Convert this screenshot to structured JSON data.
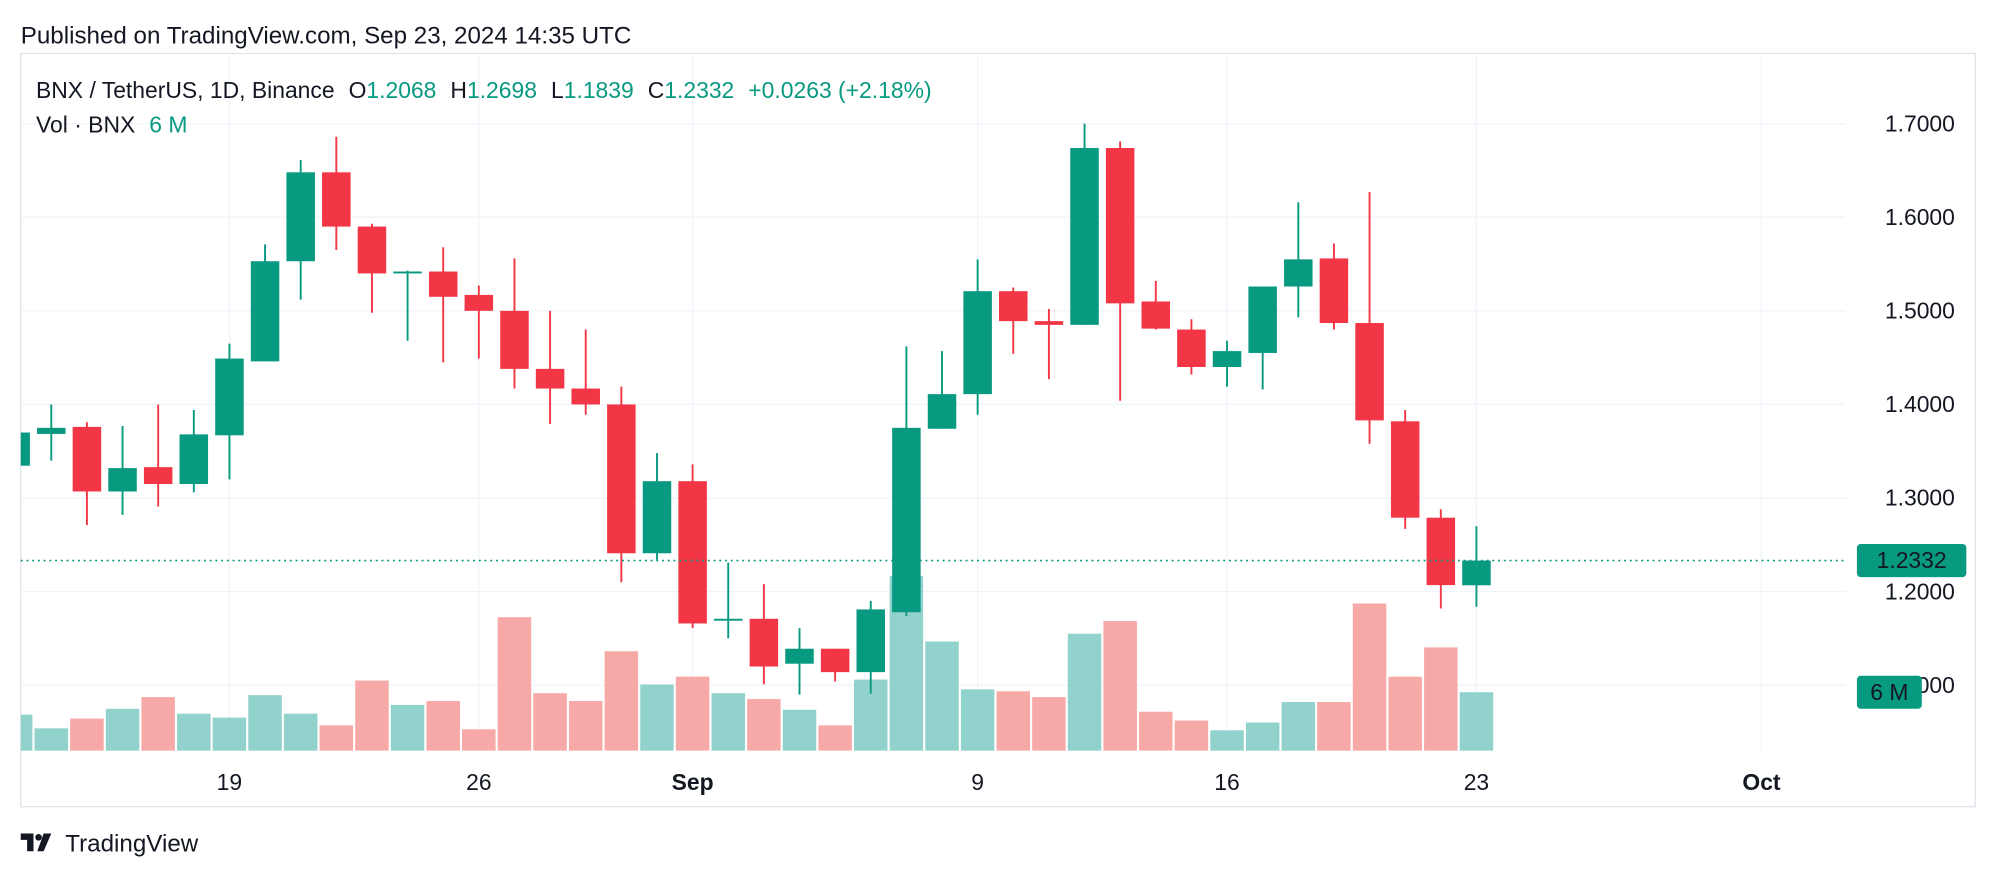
{
  "published": "Published on TradingView.com, Sep 23, 2024 14:35 UTC",
  "footer": "TradingView",
  "chart_data": {
    "type": "candlestick",
    "title": "BNX / TetherUS, 1D, Binance",
    "ohlc_labels": [
      "O",
      "H",
      "L",
      "C"
    ],
    "change": "+0.0263 (+2.18%)",
    "volume_title": "Vol · BNX",
    "volume_label": "6 M",
    "x": [
      "2024-08-13",
      "2024-08-14",
      "2024-08-15",
      "2024-08-16",
      "2024-08-17",
      "2024-08-18",
      "2024-08-19",
      "2024-08-20",
      "2024-08-21",
      "2024-08-22",
      "2024-08-23",
      "2024-08-24",
      "2024-08-25",
      "2024-08-26",
      "2024-08-27",
      "2024-08-28",
      "2024-08-29",
      "2024-08-30",
      "2024-08-31",
      "2024-09-01",
      "2024-09-02",
      "2024-09-03",
      "2024-09-04",
      "2024-09-05",
      "2024-09-06",
      "2024-09-07",
      "2024-09-08",
      "2024-09-09",
      "2024-09-10",
      "2024-09-11",
      "2024-09-12",
      "2024-09-13",
      "2024-09-14",
      "2024-09-15",
      "2024-09-16",
      "2024-09-17",
      "2024-09-18",
      "2024-09-19",
      "2024-09-20",
      "2024-09-21",
      "2024-09-22",
      "2024-09-23"
    ],
    "open": [
      1.3345,
      1.3685,
      1.376,
      1.307,
      1.333,
      1.315,
      1.367,
      1.446,
      1.553,
      1.648,
      1.59,
      1.54,
      1.542,
      1.517,
      1.5,
      1.438,
      1.417,
      1.4,
      1.241,
      1.318,
      1.169,
      1.171,
      1.123,
      1.139,
      1.114,
      1.178,
      1.374,
      1.411,
      1.521,
      1.489,
      1.485,
      1.674,
      1.51,
      1.48,
      1.44,
      1.455,
      1.526,
      1.556,
      1.487,
      1.382,
      1.279,
      1.2068
    ],
    "high": [
      1.372,
      1.4,
      1.381,
      1.377,
      1.4,
      1.394,
      1.465,
      1.571,
      1.661,
      1.686,
      1.593,
      1.543,
      1.568,
      1.527,
      1.556,
      1.5,
      1.48,
      1.419,
      1.348,
      1.336,
      1.231,
      1.208,
      1.161,
      1.139,
      1.19,
      1.462,
      1.457,
      1.555,
      1.525,
      1.502,
      1.7,
      1.681,
      1.532,
      1.491,
      1.468,
      1.526,
      1.616,
      1.572,
      1.627,
      1.394,
      1.288,
      1.2698
    ],
    "low": [
      1.33,
      1.34,
      1.271,
      1.282,
      1.291,
      1.306,
      1.32,
      1.446,
      1.512,
      1.565,
      1.498,
      1.468,
      1.445,
      1.449,
      1.417,
      1.379,
      1.389,
      1.21,
      1.234,
      1.161,
      1.15,
      1.101,
      1.09,
      1.104,
      1.091,
      1.174,
      1.374,
      1.389,
      1.454,
      1.427,
      1.485,
      1.404,
      1.48,
      1.432,
      1.419,
      1.416,
      1.493,
      1.48,
      1.358,
      1.267,
      1.182,
      1.1839
    ],
    "close": [
      1.37,
      1.375,
      1.307,
      1.332,
      1.315,
      1.368,
      1.449,
      1.553,
      1.648,
      1.59,
      1.54,
      1.542,
      1.515,
      1.5,
      1.438,
      1.417,
      1.4,
      1.241,
      1.318,
      1.166,
      1.171,
      1.12,
      1.139,
      1.114,
      1.181,
      1.375,
      1.411,
      1.521,
      1.489,
      1.485,
      1.674,
      1.508,
      1.481,
      1.44,
      1.457,
      1.526,
      1.555,
      1.487,
      1.383,
      1.279,
      1.207,
      1.2332
    ],
    "volume": [
      3.7,
      2.3,
      3.3,
      4.3,
      5.5,
      3.8,
      3.4,
      5.7,
      3.8,
      2.6,
      7.2,
      4.7,
      5.1,
      2.2,
      13.7,
      5.9,
      5.1,
      10.2,
      6.8,
      7.6,
      5.9,
      5.3,
      4.2,
      2.6,
      7.3,
      17.9,
      11.2,
      6.3,
      6.1,
      5.5,
      12.0,
      13.3,
      4.0,
      3.1,
      2.1,
      2.9,
      5.0,
      5.0,
      15.1,
      7.6,
      10.6,
      6.0
    ],
    "up_color": "#089981",
    "down_color": "#f23645",
    "up_volume_color": "#92d2cc",
    "down_volume_color": "#f7a9a7",
    "xlim": [
      "2024-08-13",
      "2024-10-03"
    ],
    "xticks": [
      {
        "value": "2024-08-19",
        "label": "19"
      },
      {
        "value": "2024-08-26",
        "label": "26"
      },
      {
        "value": "2024-09-01",
        "label": "Sep"
      },
      {
        "value": "2024-09-09",
        "label": "9"
      },
      {
        "value": "2024-09-16",
        "label": "16"
      },
      {
        "value": "2024-09-23",
        "label": "23"
      },
      {
        "value": "2024-10-01",
        "label": "Oct"
      }
    ],
    "ylim": [
      1.03,
      1.775
    ],
    "yticks": [
      {
        "value": 1.1,
        "label": "1.1000"
      },
      {
        "value": 1.2,
        "label": "1.2000"
      },
      {
        "value": 1.3,
        "label": "1.3000"
      },
      {
        "value": 1.4,
        "label": "1.4000"
      },
      {
        "value": 1.5,
        "label": "1.5000"
      },
      {
        "value": 1.6,
        "label": "1.6000"
      },
      {
        "value": 1.7,
        "label": "1.7000"
      }
    ],
    "volume_lim": [
      0,
      71.5
    ],
    "grid": true
  }
}
